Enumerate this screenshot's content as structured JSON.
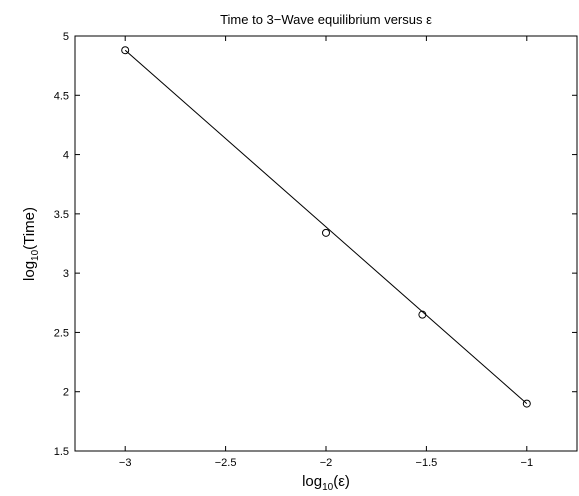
{
  "chart_data": {
    "type": "scatter",
    "title": "Time to 3−Wave equilibrium versus ε",
    "xlabel": {
      "base": "log",
      "sub": "10",
      "rest": "(ε)"
    },
    "ylabel": {
      "base": "log",
      "sub": "10",
      "rest": "(Time)"
    },
    "xlim": [
      -3.25,
      -0.75
    ],
    "ylim": [
      1.5,
      5
    ],
    "grid": false,
    "xticks": [
      -3,
      -2.5,
      -2,
      -1.5,
      -1
    ],
    "xtick_labels": [
      "−3",
      "−2.5",
      "−2",
      "−1.5",
      "−1"
    ],
    "yticks": [
      1.5,
      2,
      2.5,
      3,
      3.5,
      4,
      4.5,
      5
    ],
    "ytick_labels": [
      "1.5",
      "2",
      "2.5",
      "3",
      "3.5",
      "4",
      "4.5",
      "5"
    ],
    "series": [
      {
        "kind": "markers",
        "marker": "circle",
        "color": "#000000",
        "x": [
          -3,
          -2,
          -1.52,
          -1
        ],
        "y": [
          4.88,
          3.34,
          2.65,
          1.9
        ]
      },
      {
        "kind": "fit-line",
        "color": "#000000",
        "x": [
          -3,
          -1
        ],
        "y": [
          4.88,
          1.9
        ]
      }
    ]
  }
}
